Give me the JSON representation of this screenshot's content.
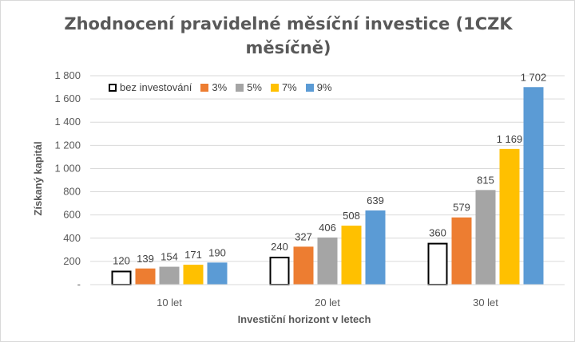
{
  "chart_data": {
    "type": "bar",
    "title": "Zhodnocení pravidelné měsíční investice (1CZK měsíčně)",
    "title_lines": [
      "Zhodnocení pravidelné měsíční investice (1CZK",
      "měsíčně)"
    ],
    "xlabel": "Investiční horizont  v letech",
    "ylabel": "Získaný kapitál",
    "categories": [
      "10 let",
      "20 let",
      "30 let"
    ],
    "ylim": [
      0,
      1800
    ],
    "yticks": [
      0,
      200,
      400,
      600,
      800,
      1000,
      1200,
      1400,
      1600,
      1800
    ],
    "ytick_labels": [
      "-",
      "200",
      "400",
      "600",
      "800",
      "1 000",
      "1 200",
      "1 400",
      "1 600",
      "1 800"
    ],
    "grid": true,
    "legend_position": "top-left",
    "series": [
      {
        "name": "bez investování",
        "color": "#000000",
        "style": "outline",
        "values": [
          120,
          240,
          360
        ],
        "labels": [
          "120",
          "240",
          "360"
        ]
      },
      {
        "name": "3%",
        "color": "#ED7D31",
        "style": "filled",
        "values": [
          139,
          327,
          579
        ],
        "labels": [
          "139",
          "327",
          "579"
        ]
      },
      {
        "name": "5%",
        "color": "#A5A5A5",
        "style": "filled",
        "values": [
          154,
          406,
          815
        ],
        "labels": [
          "154",
          "406",
          "815"
        ]
      },
      {
        "name": "7%",
        "color": "#FFC000",
        "style": "filled",
        "values": [
          171,
          508,
          1169
        ],
        "labels": [
          "171",
          "508",
          "1 169"
        ]
      },
      {
        "name": "9%",
        "color": "#5B9BD5",
        "style": "filled",
        "values": [
          190,
          639,
          1702
        ],
        "labels": [
          "190",
          "639",
          "1 702"
        ]
      }
    ]
  }
}
